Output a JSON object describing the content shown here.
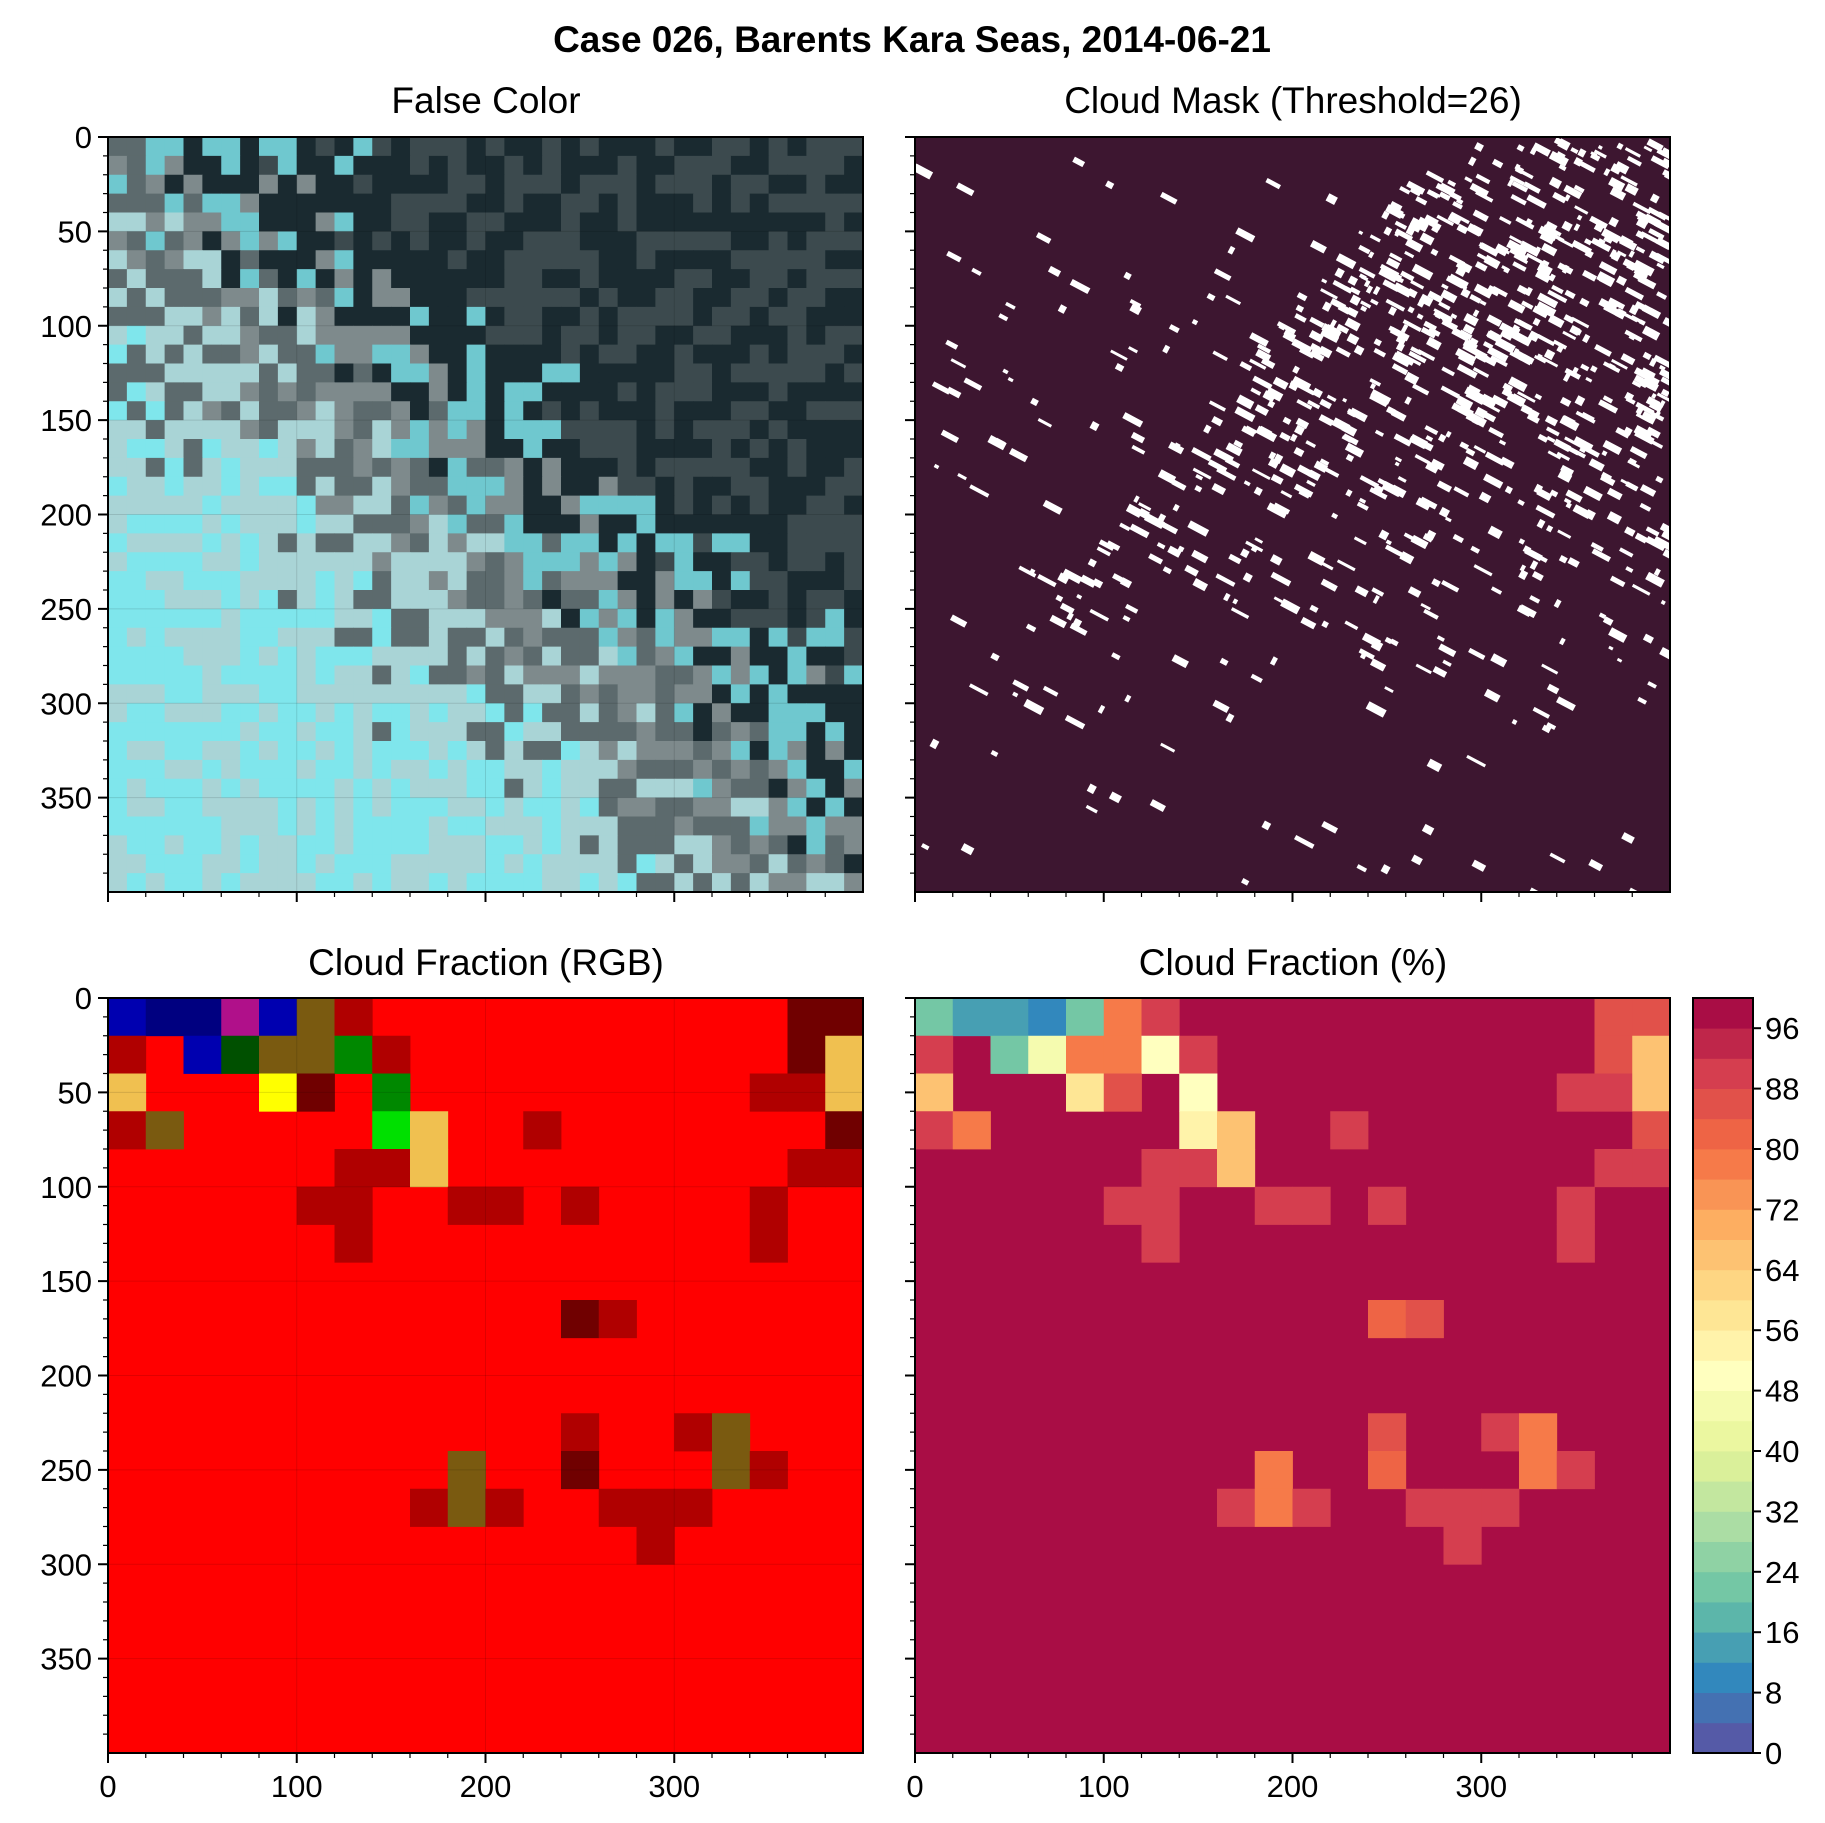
{
  "suptitle": "Case 026, Barents Kara Seas, 2014-06-21",
  "panels": [
    {
      "id": "false-color",
      "title": "False Color"
    },
    {
      "id": "cloud-mask",
      "title": "Cloud Mask (Threshold=26)"
    },
    {
      "id": "cloud-fraction-rgb",
      "title": "Cloud Fraction (RGB)"
    },
    {
      "id": "cloud-fraction-pct",
      "title": "Cloud Fraction (%)"
    }
  ],
  "colors": {
    "mask_background": "#3d1630",
    "mask_cloud": "#ffffff",
    "rgb_default": "#ff0000",
    "false_color_dark": "#1a2a30",
    "false_color_gray": "#7e8a8c",
    "false_color_cyan": "#7fe6ec"
  },
  "chart_data": [
    {
      "type": "heatmap",
      "panel": "false-color",
      "title": "False Color",
      "xlim": [
        0,
        400
      ],
      "ylim": [
        400,
        0
      ],
      "xticks": [],
      "yticks": [
        0,
        50,
        100,
        150,
        200,
        250,
        300,
        350
      ],
      "description_values": "satellite false-color image (not reproducible as data)"
    },
    {
      "type": "heatmap",
      "panel": "cloud-mask",
      "title": "Cloud Mask (Threshold=26)",
      "xlim": [
        0,
        400
      ],
      "ylim": [
        400,
        0
      ],
      "xticks": [],
      "yticks": [],
      "cloud_fraction_by_row_of_20": [
        10,
        12,
        18,
        20,
        22,
        22,
        20,
        18,
        16,
        14,
        12,
        10,
        8,
        6,
        4,
        2,
        1,
        1,
        2,
        2
      ]
    },
    {
      "type": "heatmap",
      "panel": "cloud-fraction-rgb",
      "title": "Cloud Fraction (RGB)",
      "xlim": [
        0,
        400
      ],
      "ylim": [
        400,
        0
      ],
      "xticks": [
        0,
        100,
        200,
        300
      ],
      "yticks": [
        0,
        50,
        100,
        150,
        200,
        250,
        300,
        350
      ],
      "cell_size": 20,
      "default_color": "#ff0000",
      "cells": [
        {
          "row": 0,
          "col": 0,
          "color": "#0000b0"
        },
        {
          "row": 0,
          "col": 1,
          "color": "#000080"
        },
        {
          "row": 0,
          "col": 2,
          "color": "#000080"
        },
        {
          "row": 0,
          "col": 3,
          "color": "#b0108a"
        },
        {
          "row": 0,
          "col": 4,
          "color": "#0000b0"
        },
        {
          "row": 0,
          "col": 5,
          "color": "#7a5a10"
        },
        {
          "row": 0,
          "col": 6,
          "color": "#b00000"
        },
        {
          "row": 0,
          "col": 18,
          "color": "#700000"
        },
        {
          "row": 0,
          "col": 19,
          "color": "#700000"
        },
        {
          "row": 1,
          "col": 0,
          "color": "#b00000"
        },
        {
          "row": 1,
          "col": 2,
          "color": "#0000b0"
        },
        {
          "row": 1,
          "col": 3,
          "color": "#005000"
        },
        {
          "row": 1,
          "col": 4,
          "color": "#7a5a10"
        },
        {
          "row": 1,
          "col": 5,
          "color": "#7a5a10"
        },
        {
          "row": 1,
          "col": 6,
          "color": "#008800"
        },
        {
          "row": 1,
          "col": 7,
          "color": "#b00000"
        },
        {
          "row": 1,
          "col": 18,
          "color": "#700000"
        },
        {
          "row": 1,
          "col": 19,
          "color": "#f0c050"
        },
        {
          "row": 2,
          "col": 0,
          "color": "#f0c050"
        },
        {
          "row": 2,
          "col": 4,
          "color": "#ffff00"
        },
        {
          "row": 2,
          "col": 5,
          "color": "#700000"
        },
        {
          "row": 2,
          "col": 7,
          "color": "#008800"
        },
        {
          "row": 2,
          "col": 17,
          "color": "#b00000"
        },
        {
          "row": 2,
          "col": 18,
          "color": "#b00000"
        },
        {
          "row": 2,
          "col": 19,
          "color": "#f0c050"
        },
        {
          "row": 3,
          "col": 0,
          "color": "#b00000"
        },
        {
          "row": 3,
          "col": 1,
          "color": "#7a5a10"
        },
        {
          "row": 3,
          "col": 7,
          "color": "#00e000"
        },
        {
          "row": 3,
          "col": 8,
          "color": "#f0c050"
        },
        {
          "row": 3,
          "col": 11,
          "color": "#b00000"
        },
        {
          "row": 3,
          "col": 19,
          "color": "#700000"
        },
        {
          "row": 4,
          "col": 6,
          "color": "#b00000"
        },
        {
          "row": 4,
          "col": 7,
          "color": "#b00000"
        },
        {
          "row": 4,
          "col": 8,
          "color": "#f0c050"
        },
        {
          "row": 4,
          "col": 18,
          "color": "#b00000"
        },
        {
          "row": 4,
          "col": 19,
          "color": "#b00000"
        },
        {
          "row": 5,
          "col": 5,
          "color": "#b00000"
        },
        {
          "row": 5,
          "col": 6,
          "color": "#b00000"
        },
        {
          "row": 5,
          "col": 9,
          "color": "#b00000"
        },
        {
          "row": 5,
          "col": 10,
          "color": "#b00000"
        },
        {
          "row": 5,
          "col": 12,
          "color": "#b00000"
        },
        {
          "row": 5,
          "col": 17,
          "color": "#b00000"
        },
        {
          "row": 6,
          "col": 6,
          "color": "#b00000"
        },
        {
          "row": 6,
          "col": 17,
          "color": "#b00000"
        },
        {
          "row": 8,
          "col": 12,
          "color": "#700000"
        },
        {
          "row": 8,
          "col": 13,
          "color": "#b00000"
        },
        {
          "row": 11,
          "col": 12,
          "color": "#b00000"
        },
        {
          "row": 11,
          "col": 15,
          "color": "#b00000"
        },
        {
          "row": 11,
          "col": 16,
          "color": "#7a5a10"
        },
        {
          "row": 12,
          "col": 9,
          "color": "#7a5a10"
        },
        {
          "row": 12,
          "col": 12,
          "color": "#700000"
        },
        {
          "row": 12,
          "col": 16,
          "color": "#7a5a10"
        },
        {
          "row": 12,
          "col": 17,
          "color": "#b00000"
        },
        {
          "row": 13,
          "col": 8,
          "color": "#b00000"
        },
        {
          "row": 13,
          "col": 9,
          "color": "#7a5a10"
        },
        {
          "row": 13,
          "col": 10,
          "color": "#b00000"
        },
        {
          "row": 13,
          "col": 13,
          "color": "#b00000"
        },
        {
          "row": 13,
          "col": 14,
          "color": "#b00000"
        },
        {
          "row": 13,
          "col": 15,
          "color": "#b00000"
        },
        {
          "row": 14,
          "col": 14,
          "color": "#b00000"
        }
      ]
    },
    {
      "type": "heatmap",
      "panel": "cloud-fraction-pct",
      "title": "Cloud Fraction (%)",
      "xlim": [
        0,
        400
      ],
      "ylim": [
        400,
        0
      ],
      "xticks": [
        0,
        100,
        200,
        300
      ],
      "yticks": [],
      "cell_size": 20,
      "default_value": 100,
      "cells": [
        {
          "row": 0,
          "col": 0,
          "value": 20
        },
        {
          "row": 0,
          "col": 1,
          "value": 14
        },
        {
          "row": 0,
          "col": 2,
          "value": 14
        },
        {
          "row": 0,
          "col": 3,
          "value": 10
        },
        {
          "row": 0,
          "col": 4,
          "value": 20
        },
        {
          "row": 0,
          "col": 5,
          "value": 78
        },
        {
          "row": 0,
          "col": 6,
          "value": 90
        },
        {
          "row": 0,
          "col": 18,
          "value": 86
        },
        {
          "row": 0,
          "col": 19,
          "value": 86
        },
        {
          "row": 1,
          "col": 0,
          "value": 90
        },
        {
          "row": 1,
          "col": 2,
          "value": 22
        },
        {
          "row": 1,
          "col": 3,
          "value": 46
        },
        {
          "row": 1,
          "col": 4,
          "value": 78
        },
        {
          "row": 1,
          "col": 5,
          "value": 78
        },
        {
          "row": 1,
          "col": 6,
          "value": 50
        },
        {
          "row": 1,
          "col": 7,
          "value": 90
        },
        {
          "row": 1,
          "col": 18,
          "value": 86
        },
        {
          "row": 1,
          "col": 19,
          "value": 66
        },
        {
          "row": 2,
          "col": 0,
          "value": 66
        },
        {
          "row": 2,
          "col": 4,
          "value": 58
        },
        {
          "row": 2,
          "col": 5,
          "value": 86
        },
        {
          "row": 2,
          "col": 7,
          "value": 50
        },
        {
          "row": 2,
          "col": 17,
          "value": 90
        },
        {
          "row": 2,
          "col": 18,
          "value": 90
        },
        {
          "row": 2,
          "col": 19,
          "value": 66
        },
        {
          "row": 3,
          "col": 0,
          "value": 90
        },
        {
          "row": 3,
          "col": 1,
          "value": 78
        },
        {
          "row": 3,
          "col": 7,
          "value": 54
        },
        {
          "row": 3,
          "col": 8,
          "value": 66
        },
        {
          "row": 3,
          "col": 11,
          "value": 90
        },
        {
          "row": 3,
          "col": 19,
          "value": 86
        },
        {
          "row": 4,
          "col": 6,
          "value": 90
        },
        {
          "row": 4,
          "col": 7,
          "value": 90
        },
        {
          "row": 4,
          "col": 8,
          "value": 66
        },
        {
          "row": 4,
          "col": 18,
          "value": 90
        },
        {
          "row": 4,
          "col": 19,
          "value": 90
        },
        {
          "row": 5,
          "col": 5,
          "value": 90
        },
        {
          "row": 5,
          "col": 6,
          "value": 90
        },
        {
          "row": 5,
          "col": 9,
          "value": 90
        },
        {
          "row": 5,
          "col": 10,
          "value": 90
        },
        {
          "row": 5,
          "col": 12,
          "value": 90
        },
        {
          "row": 5,
          "col": 17,
          "value": 90
        },
        {
          "row": 6,
          "col": 6,
          "value": 90
        },
        {
          "row": 6,
          "col": 17,
          "value": 90
        },
        {
          "row": 8,
          "col": 12,
          "value": 82
        },
        {
          "row": 8,
          "col": 13,
          "value": 86
        },
        {
          "row": 11,
          "col": 12,
          "value": 86
        },
        {
          "row": 11,
          "col": 15,
          "value": 90
        },
        {
          "row": 11,
          "col": 16,
          "value": 78
        },
        {
          "row": 12,
          "col": 9,
          "value": 78
        },
        {
          "row": 12,
          "col": 12,
          "value": 82
        },
        {
          "row": 12,
          "col": 16,
          "value": 78
        },
        {
          "row": 12,
          "col": 17,
          "value": 90
        },
        {
          "row": 13,
          "col": 8,
          "value": 90
        },
        {
          "row": 13,
          "col": 9,
          "value": 78
        },
        {
          "row": 13,
          "col": 10,
          "value": 90
        },
        {
          "row": 13,
          "col": 13,
          "value": 90
        },
        {
          "row": 13,
          "col": 14,
          "value": 90
        },
        {
          "row": 13,
          "col": 15,
          "value": 90
        },
        {
          "row": 14,
          "col": 14,
          "value": 90
        }
      ],
      "colorbar": {
        "range": [
          0,
          100
        ],
        "step": 4,
        "ticks": [
          0,
          8,
          16,
          24,
          32,
          40,
          48,
          56,
          64,
          72,
          80,
          88,
          96
        ],
        "tick_labels": [
          "0",
          "8",
          "16",
          "24",
          "32",
          "40",
          "48",
          "56",
          "64",
          "72",
          "80",
          "88",
          "96"
        ],
        "colormap": "Spectral_r"
      }
    }
  ]
}
